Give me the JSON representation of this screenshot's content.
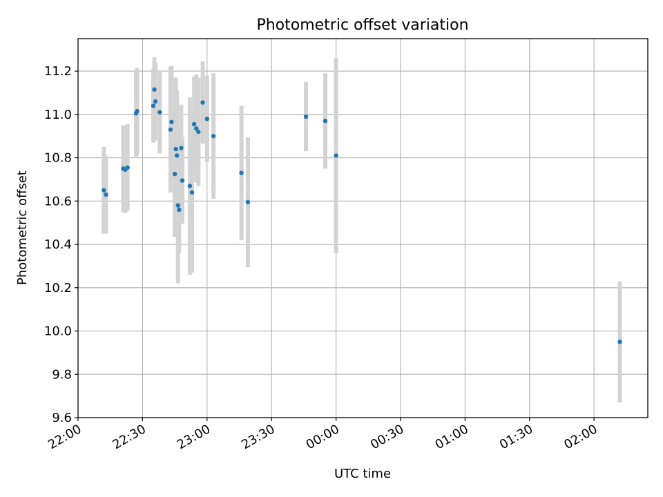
{
  "chart_data": {
    "type": "scatter",
    "title": "Photometric offset variation",
    "xlabel": "UTC time",
    "ylabel": "Photometric offset",
    "x_tick_labels": [
      "22:00",
      "22:30",
      "23:00",
      "23:30",
      "00:00",
      "00:30",
      "01:00",
      "01:30",
      "02:00"
    ],
    "y_tick_labels": [
      "9.6",
      "9.8",
      "10.0",
      "10.2",
      "10.4",
      "10.6",
      "10.8",
      "11.0",
      "11.2"
    ],
    "xlim": [
      "22:00",
      "02:25"
    ],
    "ylim": [
      9.6,
      11.35
    ],
    "grid": true,
    "marker_color": "#1f77b4",
    "errorbar_color": "#d3d3d3",
    "points": [
      {
        "x": "22:12",
        "y": 10.65,
        "err": 0.2
      },
      {
        "x": "22:13",
        "y": 10.63,
        "err": 0.18
      },
      {
        "x": "22:21",
        "y": 10.75,
        "err": 0.2
      },
      {
        "x": "22:22",
        "y": 10.745,
        "err": 0.2
      },
      {
        "x": "22:23",
        "y": 10.755,
        "err": 0.2
      },
      {
        "x": "22:27",
        "y": 11.005,
        "err": 0.2
      },
      {
        "x": "22:27.5",
        "y": 11.015,
        "err": 0.2
      },
      {
        "x": "22:35",
        "y": 11.04,
        "err": 0.17
      },
      {
        "x": "22:35.5",
        "y": 11.115,
        "err": 0.15
      },
      {
        "x": "22:36",
        "y": 11.06,
        "err": 0.18
      },
      {
        "x": "22:38",
        "y": 11.01,
        "err": 0.19
      },
      {
        "x": "22:43",
        "y": 10.93,
        "err": 0.29
      },
      {
        "x": "22:43.5",
        "y": 10.965,
        "err": 0.26
      },
      {
        "x": "22:45",
        "y": 10.725,
        "err": 0.29
      },
      {
        "x": "22:45.5",
        "y": 10.84,
        "err": 0.33
      },
      {
        "x": "22:46",
        "y": 10.81,
        "err": 0.3
      },
      {
        "x": "22:46.5",
        "y": 10.58,
        "err": 0.36
      },
      {
        "x": "22:47",
        "y": 10.56,
        "err": 0.2
      },
      {
        "x": "22:48",
        "y": 10.845,
        "err": 0.2
      },
      {
        "x": "22:48.5",
        "y": 10.695,
        "err": 0.2
      },
      {
        "x": "22:52",
        "y": 10.67,
        "err": 0.41
      },
      {
        "x": "22:53",
        "y": 10.64,
        "err": 0.37
      },
      {
        "x": "22:54",
        "y": 10.955,
        "err": 0.22
      },
      {
        "x": "22:55",
        "y": 10.935,
        "err": 0.25
      },
      {
        "x": "22:56",
        "y": 10.92,
        "err": 0.25
      },
      {
        "x": "22:58",
        "y": 11.055,
        "err": 0.19
      },
      {
        "x": "23:00",
        "y": 10.98,
        "err": 0.2
      },
      {
        "x": "23:03",
        "y": 10.9,
        "err": 0.29
      },
      {
        "x": "23:16",
        "y": 10.73,
        "err": 0.31
      },
      {
        "x": "23:19",
        "y": 10.595,
        "err": 0.3
      },
      {
        "x": "23:46",
        "y": 10.99,
        "err": 0.16
      },
      {
        "x": "23:55",
        "y": 10.97,
        "err": 0.22
      },
      {
        "x": "00:00",
        "y": 10.81,
        "err": 0.45
      },
      {
        "x": "02:12",
        "y": 9.95,
        "err": 0.28
      }
    ]
  }
}
